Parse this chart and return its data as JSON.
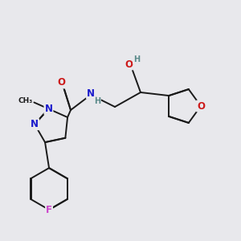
{
  "bg_color": "#e8e8ec",
  "bond_color": "#1a1a1a",
  "dbo": 0.012,
  "atom_colors": {
    "N": "#1a1acc",
    "O": "#cc1a1a",
    "F": "#cc44cc",
    "H": "#5a8a8a",
    "C": "#1a1a1a"
  },
  "fs": 8.5,
  "fs2": 7.0,
  "lw": 1.4
}
